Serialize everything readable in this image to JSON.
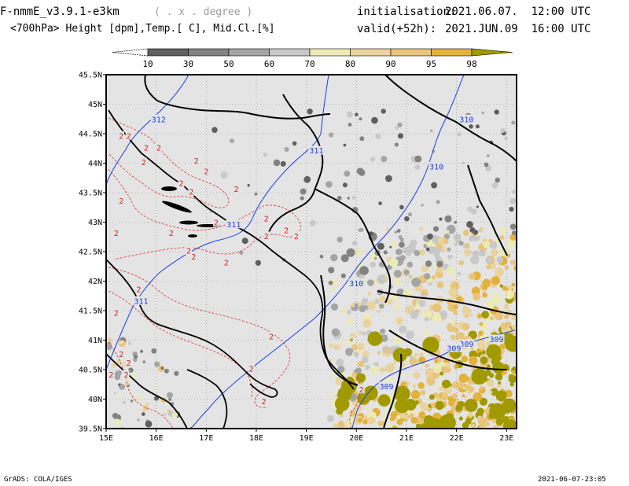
{
  "header": {
    "model": "F-nmmE_v3.9.1-e3km",
    "projection": "( . x . degree )",
    "fields": "<700hPa> Height [dpm],Temp.[ C], Mid.Cl.[%]",
    "init_label": "initialisation:",
    "init_value": "2021.06.07.  12:00 UTC",
    "valid_label": "valid(+52h):",
    "valid_value": "2021.JUN.09  16:00 UTC"
  },
  "colorbar": {
    "labels": [
      "10",
      "30",
      "50",
      "60",
      "70",
      "80",
      "90",
      "95",
      "98"
    ],
    "colors": [
      "#5f5f5f",
      "#828282",
      "#a5a5a5",
      "#c8c8c8",
      "#ecebb6",
      "#ead39e",
      "#e9c47b",
      "#e3b23a"
    ],
    "end_color": "#a09a00"
  },
  "map": {
    "background": "#e4e4e4",
    "lat_labels": [
      "45.5N",
      "45N",
      "44.5N",
      "44N",
      "43.5N",
      "43N",
      "42.5N",
      "42N",
      "41.5N",
      "41N",
      "40.5N",
      "40N",
      "39.5N"
    ],
    "lon_labels": [
      "15E",
      "16E",
      "17E",
      "18E",
      "19E",
      "20E",
      "21E",
      "22E",
      "23E"
    ],
    "height_labels": [
      {
        "text": "312",
        "lon": 16.05,
        "lat": 44.73
      },
      {
        "text": "311",
        "lon": 19.2,
        "lat": 44.2
      },
      {
        "text": "311",
        "lon": 17.55,
        "lat": 42.95
      },
      {
        "text": "311",
        "lon": 15.7,
        "lat": 41.65
      },
      {
        "text": "310",
        "lon": 22.2,
        "lat": 44.73
      },
      {
        "text": "310",
        "lon": 21.6,
        "lat": 43.93
      },
      {
        "text": "310",
        "lon": 20.0,
        "lat": 41.95
      },
      {
        "text": "309",
        "lon": 22.2,
        "lat": 40.92
      },
      {
        "text": "309",
        "lon": 21.95,
        "lat": 40.85
      },
      {
        "text": "309",
        "lon": 22.8,
        "lat": 41.0
      },
      {
        "text": "309",
        "lon": 20.6,
        "lat": 40.2
      }
    ],
    "temp_labels": [
      {
        "text": "2",
        "lon": 15.3,
        "lat": 44.45
      },
      {
        "text": "2",
        "lon": 15.45,
        "lat": 44.45
      },
      {
        "text": "2",
        "lon": 15.8,
        "lat": 44.25
      },
      {
        "text": "2",
        "lon": 16.05,
        "lat": 44.25
      },
      {
        "text": "2",
        "lon": 15.75,
        "lat": 44.0
      },
      {
        "text": "2",
        "lon": 16.8,
        "lat": 44.03
      },
      {
        "text": "2",
        "lon": 17.0,
        "lat": 43.85
      },
      {
        "text": "2",
        "lon": 16.5,
        "lat": 43.65
      },
      {
        "text": "2",
        "lon": 16.7,
        "lat": 43.5
      },
      {
        "text": "2",
        "lon": 15.3,
        "lat": 43.35
      },
      {
        "text": "2",
        "lon": 17.6,
        "lat": 43.55
      },
      {
        "text": "2",
        "lon": 17.2,
        "lat": 42.98
      },
      {
        "text": "2",
        "lon": 15.2,
        "lat": 42.8
      },
      {
        "text": "2",
        "lon": 16.3,
        "lat": 42.8
      },
      {
        "text": "2",
        "lon": 18.2,
        "lat": 42.75
      },
      {
        "text": "2",
        "lon": 18.6,
        "lat": 42.85
      },
      {
        "text": "2",
        "lon": 18.8,
        "lat": 42.75
      },
      {
        "text": "2",
        "lon": 18.2,
        "lat": 43.05
      },
      {
        "text": "2",
        "lon": 16.65,
        "lat": 42.5
      },
      {
        "text": "2",
        "lon": 16.75,
        "lat": 42.4
      },
      {
        "text": "2",
        "lon": 17.4,
        "lat": 42.3
      },
      {
        "text": "2",
        "lon": 15.65,
        "lat": 41.85
      },
      {
        "text": "2",
        "lon": 15.2,
        "lat": 41.45
      },
      {
        "text": "2",
        "lon": 18.3,
        "lat": 41.05
      },
      {
        "text": "2",
        "lon": 15.3,
        "lat": 40.75
      },
      {
        "text": "2",
        "lon": 15.45,
        "lat": 40.6
      },
      {
        "text": "2",
        "lon": 15.1,
        "lat": 40.4
      },
      {
        "text": "2",
        "lon": 15.4,
        "lat": 40.4
      },
      {
        "text": "2",
        "lon": 17.9,
        "lat": 40.5
      },
      {
        "text": "2",
        "lon": 18.15,
        "lat": 39.95
      },
      {
        "text": "2",
        "lon": 20.1,
        "lat": 40.15
      }
    ]
  },
  "footer": {
    "left": "GrADS: COLA/IGES",
    "right": "2021-06-07-23:05"
  }
}
